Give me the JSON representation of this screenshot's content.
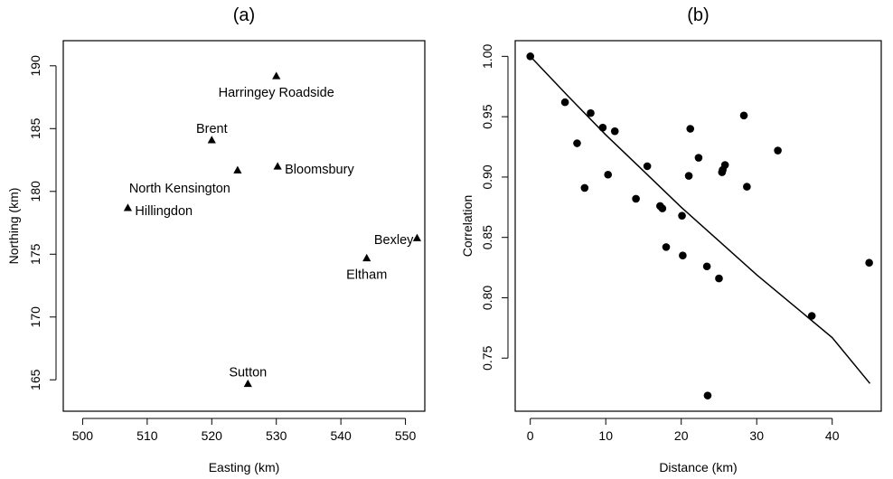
{
  "chart_data": [
    {
      "type": "scatter",
      "title": "(a)",
      "xlabel": "Easting (km)",
      "ylabel": "Northing (km)",
      "xlim": [
        497,
        553
      ],
      "ylim": [
        162.5,
        192
      ],
      "xticks": [
        500,
        510,
        520,
        530,
        540,
        550
      ],
      "yticks": [
        165,
        170,
        175,
        180,
        185,
        190
      ],
      "grid": false,
      "marker": "triangle",
      "points": [
        {
          "label": "Harringey Roadside",
          "x": 530.0,
          "y": 189.2,
          "label_pos": "below"
        },
        {
          "label": "Brent",
          "x": 520.0,
          "y": 184.1,
          "label_pos": "above"
        },
        {
          "label": "Bloomsbury",
          "x": 530.2,
          "y": 182.0,
          "label_pos": "right"
        },
        {
          "label": "North Kensington",
          "x": 524.0,
          "y": 181.7,
          "label_pos": "below-left"
        },
        {
          "label": "Hillingdon",
          "x": 507.0,
          "y": 178.7,
          "label_pos": "right"
        },
        {
          "label": "Bexley",
          "x": 551.8,
          "y": 176.3,
          "label_pos": "left"
        },
        {
          "label": "Eltham",
          "x": 544.0,
          "y": 174.7,
          "label_pos": "below"
        },
        {
          "label": "Sutton",
          "x": 525.6,
          "y": 164.7,
          "label_pos": "above"
        }
      ]
    },
    {
      "type": "scatter",
      "title": "(b)",
      "xlabel": "Distance (km)",
      "ylabel": "Correlation",
      "xlim": [
        -2,
        46.5
      ],
      "ylim": [
        0.706,
        1.013
      ],
      "xticks": [
        0,
        10,
        20,
        30,
        40
      ],
      "yticks": [
        0.75,
        0.8,
        0.85,
        0.9,
        0.95,
        1.0
      ],
      "ytick_labels": [
        "0.75",
        "0.80",
        "0.85",
        "0.90",
        "0.95",
        "1.00"
      ],
      "grid": false,
      "marker": "circle",
      "points": [
        {
          "x": 0.0,
          "y": 1.0
        },
        {
          "x": 4.6,
          "y": 0.962
        },
        {
          "x": 6.2,
          "y": 0.928
        },
        {
          "x": 7.2,
          "y": 0.891
        },
        {
          "x": 8.0,
          "y": 0.953
        },
        {
          "x": 9.6,
          "y": 0.941
        },
        {
          "x": 10.3,
          "y": 0.902
        },
        {
          "x": 11.2,
          "y": 0.938
        },
        {
          "x": 14.0,
          "y": 0.882
        },
        {
          "x": 15.5,
          "y": 0.909
        },
        {
          "x": 17.2,
          "y": 0.876
        },
        {
          "x": 17.5,
          "y": 0.874
        },
        {
          "x": 18.0,
          "y": 0.842
        },
        {
          "x": 20.1,
          "y": 0.868
        },
        {
          "x": 20.2,
          "y": 0.835
        },
        {
          "x": 21.0,
          "y": 0.901
        },
        {
          "x": 21.2,
          "y": 0.94
        },
        {
          "x": 22.3,
          "y": 0.916
        },
        {
          "x": 23.4,
          "y": 0.826
        },
        {
          "x": 23.5,
          "y": 0.719
        },
        {
          "x": 25.0,
          "y": 0.816
        },
        {
          "x": 25.4,
          "y": 0.904
        },
        {
          "x": 25.5,
          "y": 0.906
        },
        {
          "x": 25.8,
          "y": 0.91
        },
        {
          "x": 28.3,
          "y": 0.951
        },
        {
          "x": 28.7,
          "y": 0.892
        },
        {
          "x": 32.8,
          "y": 0.922
        },
        {
          "x": 37.3,
          "y": 0.785
        },
        {
          "x": 44.9,
          "y": 0.829
        }
      ],
      "fitted_curve": {
        "x": [
          0,
          5,
          10,
          15,
          20,
          25,
          30,
          35,
          40,
          45
        ],
        "y": [
          1.0,
          0.967,
          0.935,
          0.905,
          0.875,
          0.847,
          0.819,
          0.793,
          0.767,
          0.729
        ]
      }
    }
  ]
}
